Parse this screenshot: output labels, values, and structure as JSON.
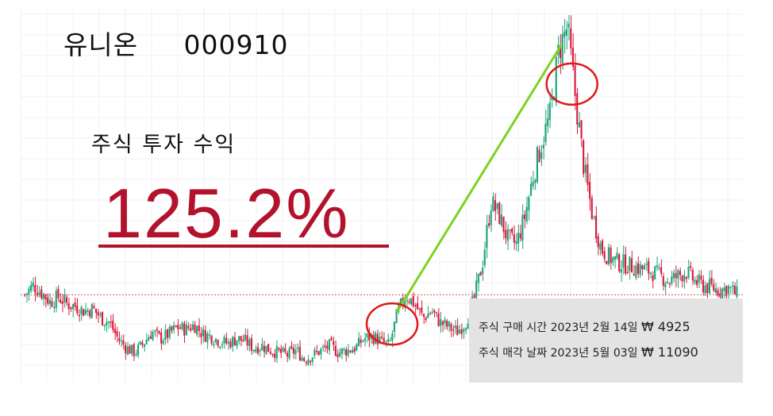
{
  "header": {
    "company_name": "유니온",
    "stock_code": "000910",
    "subtitle": "주식 투자 수익",
    "return_pct": "125.2%"
  },
  "trades": {
    "buy_label": "주식 구매 시간",
    "buy_date": "2023년 2월 14일",
    "buy_price": "₩ 4925",
    "sell_label": "주식 매각 날짜",
    "sell_date": "2023년 5월 03일",
    "sell_price": "₩ 11090"
  },
  "chart_data": {
    "type": "candlestick",
    "title": "",
    "xlabel": "",
    "ylabel": "",
    "grid": true,
    "up_color": "#1aa37a",
    "down_color": "#d91a3a",
    "reference_line_color": "#e05050",
    "annotation_line_color": "#7ed321",
    "highlight_circle_color": "#e01818",
    "price_path": [
      5300,
      5500,
      5350,
      5150,
      5250,
      5100,
      5050,
      4950,
      5000,
      4800,
      4700,
      4350,
      4150,
      4050,
      4250,
      4500,
      4350,
      4450,
      4600,
      4550,
      4650,
      4450,
      4400,
      4300,
      4250,
      4350,
      4300,
      4150,
      4200,
      4100,
      4050,
      4000,
      4100,
      3900,
      4000,
      4100,
      4200,
      4050,
      4100,
      4150,
      4350,
      4400,
      4300,
      4200,
      4925,
      5300,
      5100,
      4800,
      4950,
      4700,
      4600,
      4500,
      4700,
      5200,
      6000,
      7300,
      7000,
      6500,
      6400,
      7000,
      7900,
      8600,
      9200,
      10600,
      11090,
      9500,
      8000,
      7000,
      6300,
      6100,
      6000,
      5950,
      5900,
      5850,
      5800,
      5700,
      5600,
      5700,
      5800,
      5600,
      5500,
      5450,
      5400,
      5450,
      5300
    ],
    "reference_price": 5300,
    "buy_point": {
      "date": "2023-02-14",
      "price": 4925
    },
    "sell_point": {
      "date": "2023-05-03",
      "price": 11090
    }
  }
}
